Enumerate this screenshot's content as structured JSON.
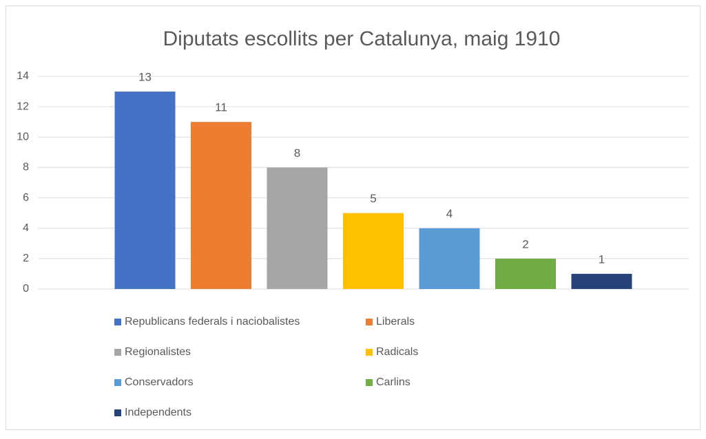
{
  "chart_data": {
    "type": "bar",
    "title": "Diputats escollits per Catalunya, maig 1910",
    "categories": [
      null
    ],
    "series": [
      {
        "name": "Republicans federals i naciobalistes",
        "color": "#4472c4",
        "values": [
          13
        ]
      },
      {
        "name": "Liberals",
        "color": "#ed7d31",
        "values": [
          11
        ]
      },
      {
        "name": "Regionalistes",
        "color": "#a5a5a5",
        "values": [
          8
        ]
      },
      {
        "name": "Radicals",
        "color": "#ffc000",
        "values": [
          5
        ]
      },
      {
        "name": "Conservadors",
        "color": "#5b9bd5",
        "values": [
          4
        ]
      },
      {
        "name": "Carlins",
        "color": "#70ad47",
        "values": [
          2
        ]
      },
      {
        "name": "Independents",
        "color": "#264478",
        "values": [
          1
        ]
      }
    ],
    "ylim": [
      0,
      14
    ],
    "yticks": [
      0,
      2,
      4,
      6,
      8,
      10,
      12,
      14
    ],
    "grid": true,
    "legend": "bottom"
  }
}
